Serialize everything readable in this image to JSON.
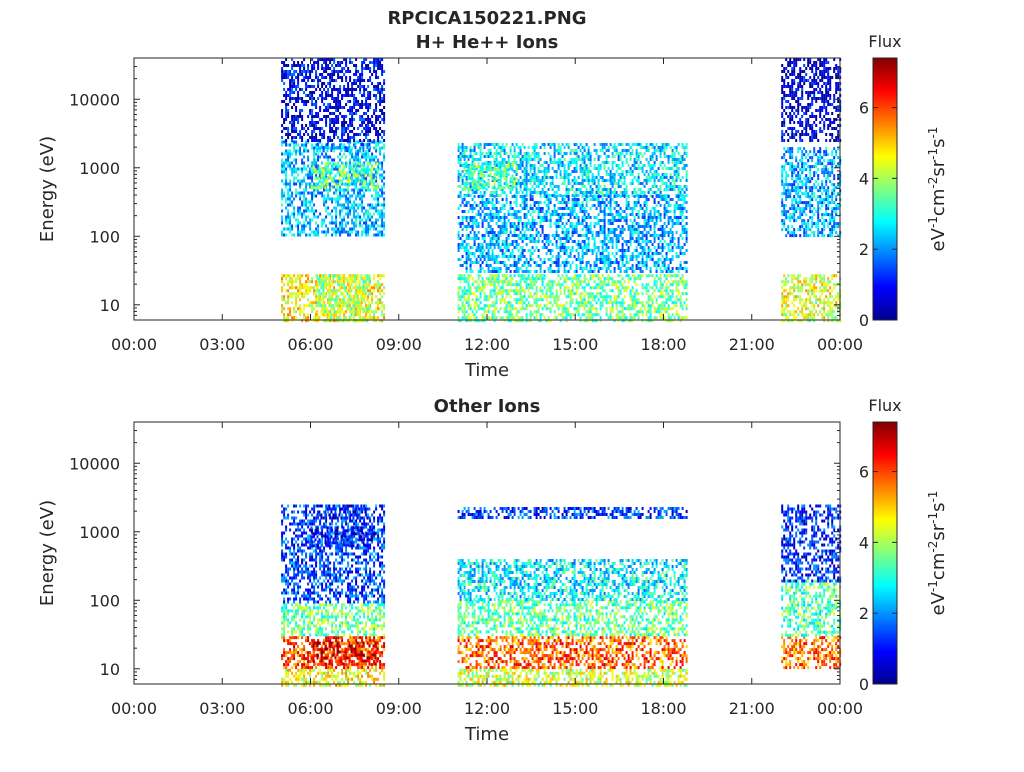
{
  "figure": {
    "title": "RPCICA150221.PNG"
  },
  "chart_data": [
    {
      "type": "heatmap",
      "title": "H+ He++ Ions",
      "xlabel": "Time",
      "ylabel": "Energy (eV)",
      "x_ticks": [
        "00:00",
        "03:00",
        "06:00",
        "09:00",
        "12:00",
        "15:00",
        "18:00",
        "21:00",
        "00:00"
      ],
      "xlim_hours": [
        0,
        24
      ],
      "y_scale": "log",
      "y_ticks": [
        "10",
        "100",
        "1000",
        "10000"
      ],
      "ylim": [
        6,
        40000
      ],
      "colorbar": {
        "label": "Flux",
        "units": "eV-1cm-2sr-1s-1",
        "range": [
          0,
          7.4
        ],
        "ticks": [
          "0",
          "2",
          "4",
          "6"
        ],
        "colormap": "jet"
      },
      "data_intervals_hours": [
        [
          5.0,
          8.5
        ],
        [
          11.0,
          18.8
        ],
        [
          22.0,
          24.0
        ]
      ],
      "bands": [
        {
          "t": [
            5.0,
            8.5
          ],
          "e": [
            6,
            28
          ],
          "level": 4.6
        },
        {
          "t": [
            6.2,
            8.0
          ],
          "e": [
            6,
            28
          ],
          "level": 4.0
        },
        {
          "t": [
            11.0,
            18.8
          ],
          "e": [
            6,
            28
          ],
          "level": 3.6
        },
        {
          "t": [
            22.0,
            24.0
          ],
          "e": [
            6,
            28
          ],
          "level": 4.4
        },
        {
          "t": [
            5.0,
            8.5
          ],
          "e": [
            100,
            2500
          ],
          "level": 2.3
        },
        {
          "t": [
            6.0,
            8.3
          ],
          "e": [
            500,
            1200
          ],
          "level": 3.6
        },
        {
          "t": [
            6.2,
            8.0
          ],
          "e": [
            1700,
            2300
          ],
          "level": 1.9
        },
        {
          "t": [
            11.0,
            18.8
          ],
          "e": [
            400,
            2300
          ],
          "level": 2.6
        },
        {
          "t": [
            11.2,
            13.0
          ],
          "e": [
            500,
            1200
          ],
          "level": 3.4
        },
        {
          "t": [
            22.0,
            24.0
          ],
          "e": [
            100,
            2000
          ],
          "level": 2.2
        },
        {
          "t": [
            5.0,
            8.5
          ],
          "e": [
            2500,
            40000
          ],
          "level": 0.8
        },
        {
          "t": [
            22.0,
            24.0
          ],
          "e": [
            2500,
            40000
          ],
          "level": 0.6
        },
        {
          "t": [
            11.0,
            18.8
          ],
          "e": [
            30,
            400
          ],
          "level": 2.2
        }
      ]
    },
    {
      "type": "heatmap",
      "title": "Other Ions",
      "xlabel": "Time",
      "ylabel": "Energy (eV)",
      "x_ticks": [
        "00:00",
        "03:00",
        "06:00",
        "09:00",
        "12:00",
        "15:00",
        "18:00",
        "21:00",
        "00:00"
      ],
      "xlim_hours": [
        0,
        24
      ],
      "y_scale": "log",
      "y_ticks": [
        "10",
        "100",
        "1000",
        "10000"
      ],
      "ylim": [
        6,
        40000
      ],
      "colorbar": {
        "label": "Flux",
        "units": "eV-1cm-2sr-1s-1",
        "range": [
          0,
          7.4
        ],
        "ticks": [
          "0",
          "2",
          "4",
          "6"
        ],
        "colormap": "jet"
      },
      "data_intervals_hours": [
        [
          5.0,
          8.5
        ],
        [
          11.0,
          18.8
        ],
        [
          22.0,
          24.0
        ]
      ],
      "bands": [
        {
          "t": [
            5.0,
            8.5
          ],
          "e": [
            10,
            30
          ],
          "level": 6.0
        },
        {
          "t": [
            6.0,
            8.3
          ],
          "e": [
            12,
            25
          ],
          "level": 6.6
        },
        {
          "t": [
            5.0,
            8.5
          ],
          "e": [
            6,
            10
          ],
          "level": 4.6
        },
        {
          "t": [
            5.0,
            8.5
          ],
          "e": [
            30,
            90
          ],
          "level": 3.6
        },
        {
          "t": [
            5.0,
            8.5
          ],
          "e": [
            90,
            2500
          ],
          "level": 1.4
        },
        {
          "t": [
            6.0,
            8.3
          ],
          "e": [
            600,
            1200
          ],
          "level": 1.0
        },
        {
          "t": [
            6.2,
            8.0
          ],
          "e": [
            1600,
            2500
          ],
          "level": 0.9
        },
        {
          "t": [
            11.0,
            18.8
          ],
          "e": [
            10,
            30
          ],
          "level": 5.8
        },
        {
          "t": [
            11.0,
            18.8
          ],
          "e": [
            6,
            10
          ],
          "level": 4.3
        },
        {
          "t": [
            11.0,
            18.8
          ],
          "e": [
            30,
            100
          ],
          "level": 3.5
        },
        {
          "t": [
            11.0,
            18.8
          ],
          "e": [
            100,
            400
          ],
          "level": 2.7
        },
        {
          "t": [
            11.0,
            18.8
          ],
          "e": [
            1600,
            2300
          ],
          "level": 1.4
        },
        {
          "t": [
            22.0,
            24.0
          ],
          "e": [
            10,
            30
          ],
          "level": 5.6
        },
        {
          "t": [
            22.0,
            24.0
          ],
          "e": [
            30,
            200
          ],
          "level": 3.4
        },
        {
          "t": [
            22.0,
            24.0
          ],
          "e": [
            200,
            2500
          ],
          "level": 1.2
        }
      ]
    }
  ]
}
